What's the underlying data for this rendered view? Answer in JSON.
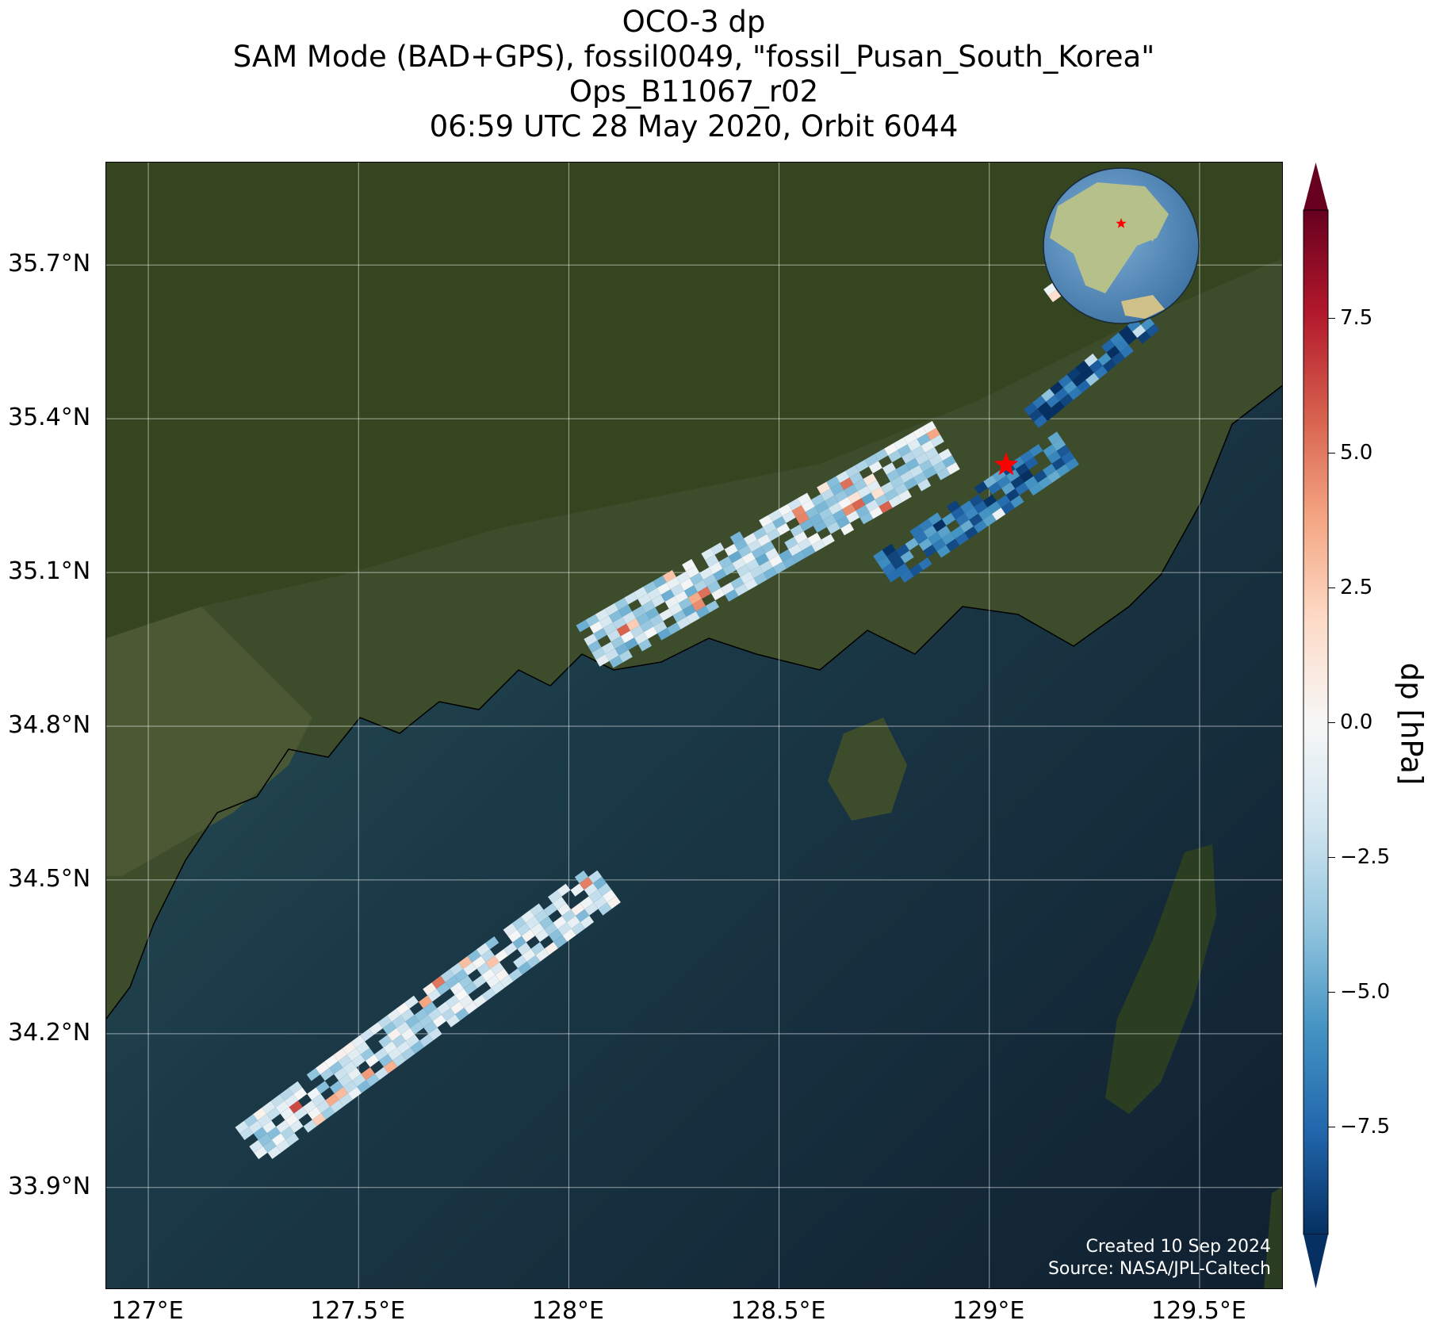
{
  "title": {
    "line1": "OCO-3 dp",
    "line2": "SAM Mode (BAD+GPS), fossil0049, \"fossil_Pusan_South_Korea\"",
    "line3": "Ops_B11067_r02",
    "line4": "06:59 UTC 28 May 2020, Orbit 6044"
  },
  "map": {
    "lon_range": [
      126.9,
      129.7
    ],
    "lat_range": [
      33.7,
      35.9
    ],
    "lon_ticks": [
      {
        "value": 127.0,
        "label": "127°E"
      },
      {
        "value": 127.5,
        "label": "127.5°E"
      },
      {
        "value": 128.0,
        "label": "128°E"
      },
      {
        "value": 128.5,
        "label": "128.5°E"
      },
      {
        "value": 129.0,
        "label": "129°E"
      },
      {
        "value": 129.5,
        "label": "129.5°E"
      }
    ],
    "lat_ticks": [
      {
        "value": 35.7,
        "label": "35.7°N"
      },
      {
        "value": 35.4,
        "label": "35.4°N"
      },
      {
        "value": 35.1,
        "label": "35.1°N"
      },
      {
        "value": 34.8,
        "label": "34.8°N"
      },
      {
        "value": 34.5,
        "label": "34.5°N"
      },
      {
        "value": 34.2,
        "label": "34.2°N"
      },
      {
        "value": 33.9,
        "label": "33.9°N"
      }
    ],
    "target": {
      "name": "fossil_Pusan_South_Korea",
      "lon": 129.04,
      "lat": 35.31,
      "marker": "star-icon",
      "color": "#ff0000"
    },
    "land_color": "#3b4a2a",
    "sea_color": "#122436",
    "inset_globe": {
      "marker": "star-icon",
      "marker_color": "#ff0000"
    },
    "swaths": [
      {
        "name": "swath-south",
        "lon_start": 127.24,
        "lat_start": 33.98,
        "lon_end": 128.1,
        "lat_end": 34.5,
        "width_deg": 0.1,
        "mean_dp": -2.0
      },
      {
        "name": "swath-central",
        "lon_start": 128.05,
        "lat_start": 34.95,
        "lon_end": 128.9,
        "lat_end": 35.35,
        "width_deg": 0.12,
        "mean_dp": -2.5
      },
      {
        "name": "swath-east",
        "lon_start": 128.75,
        "lat_start": 35.1,
        "lon_end": 129.2,
        "lat_end": 35.35,
        "width_deg": 0.08,
        "mean_dp": -7.0
      },
      {
        "name": "swath-north-east",
        "lon_start": 129.1,
        "lat_start": 35.4,
        "lon_end": 129.4,
        "lat_end": 35.6,
        "width_deg": 0.06,
        "mean_dp": -8.0
      },
      {
        "name": "swath-north",
        "lon_start": 129.14,
        "lat_start": 35.64,
        "lon_end": 129.24,
        "lat_end": 35.7,
        "width_deg": 0.04,
        "mean_dp": 1.0
      }
    ]
  },
  "colorbar": {
    "label": "dp [hPa]",
    "vmin": -9.5,
    "vmax": 9.5,
    "colormap": [
      "#053061",
      "#2166ac",
      "#4393c3",
      "#92c5de",
      "#d1e5f0",
      "#f7f7f7",
      "#fddbc7",
      "#f4a582",
      "#d6604d",
      "#b2182b",
      "#67001f"
    ],
    "ticks": [
      {
        "value": 7.5,
        "label": "7.5"
      },
      {
        "value": 5.0,
        "label": "5.0"
      },
      {
        "value": 2.5,
        "label": "2.5"
      },
      {
        "value": 0.0,
        "label": "0.0"
      },
      {
        "value": -2.5,
        "label": "−2.5"
      },
      {
        "value": -5.0,
        "label": "−5.0"
      },
      {
        "value": -7.5,
        "label": "−7.5"
      }
    ]
  },
  "credit": {
    "created": "Created 10 Sep 2024",
    "source": "Source: NASA/JPL-Caltech"
  }
}
